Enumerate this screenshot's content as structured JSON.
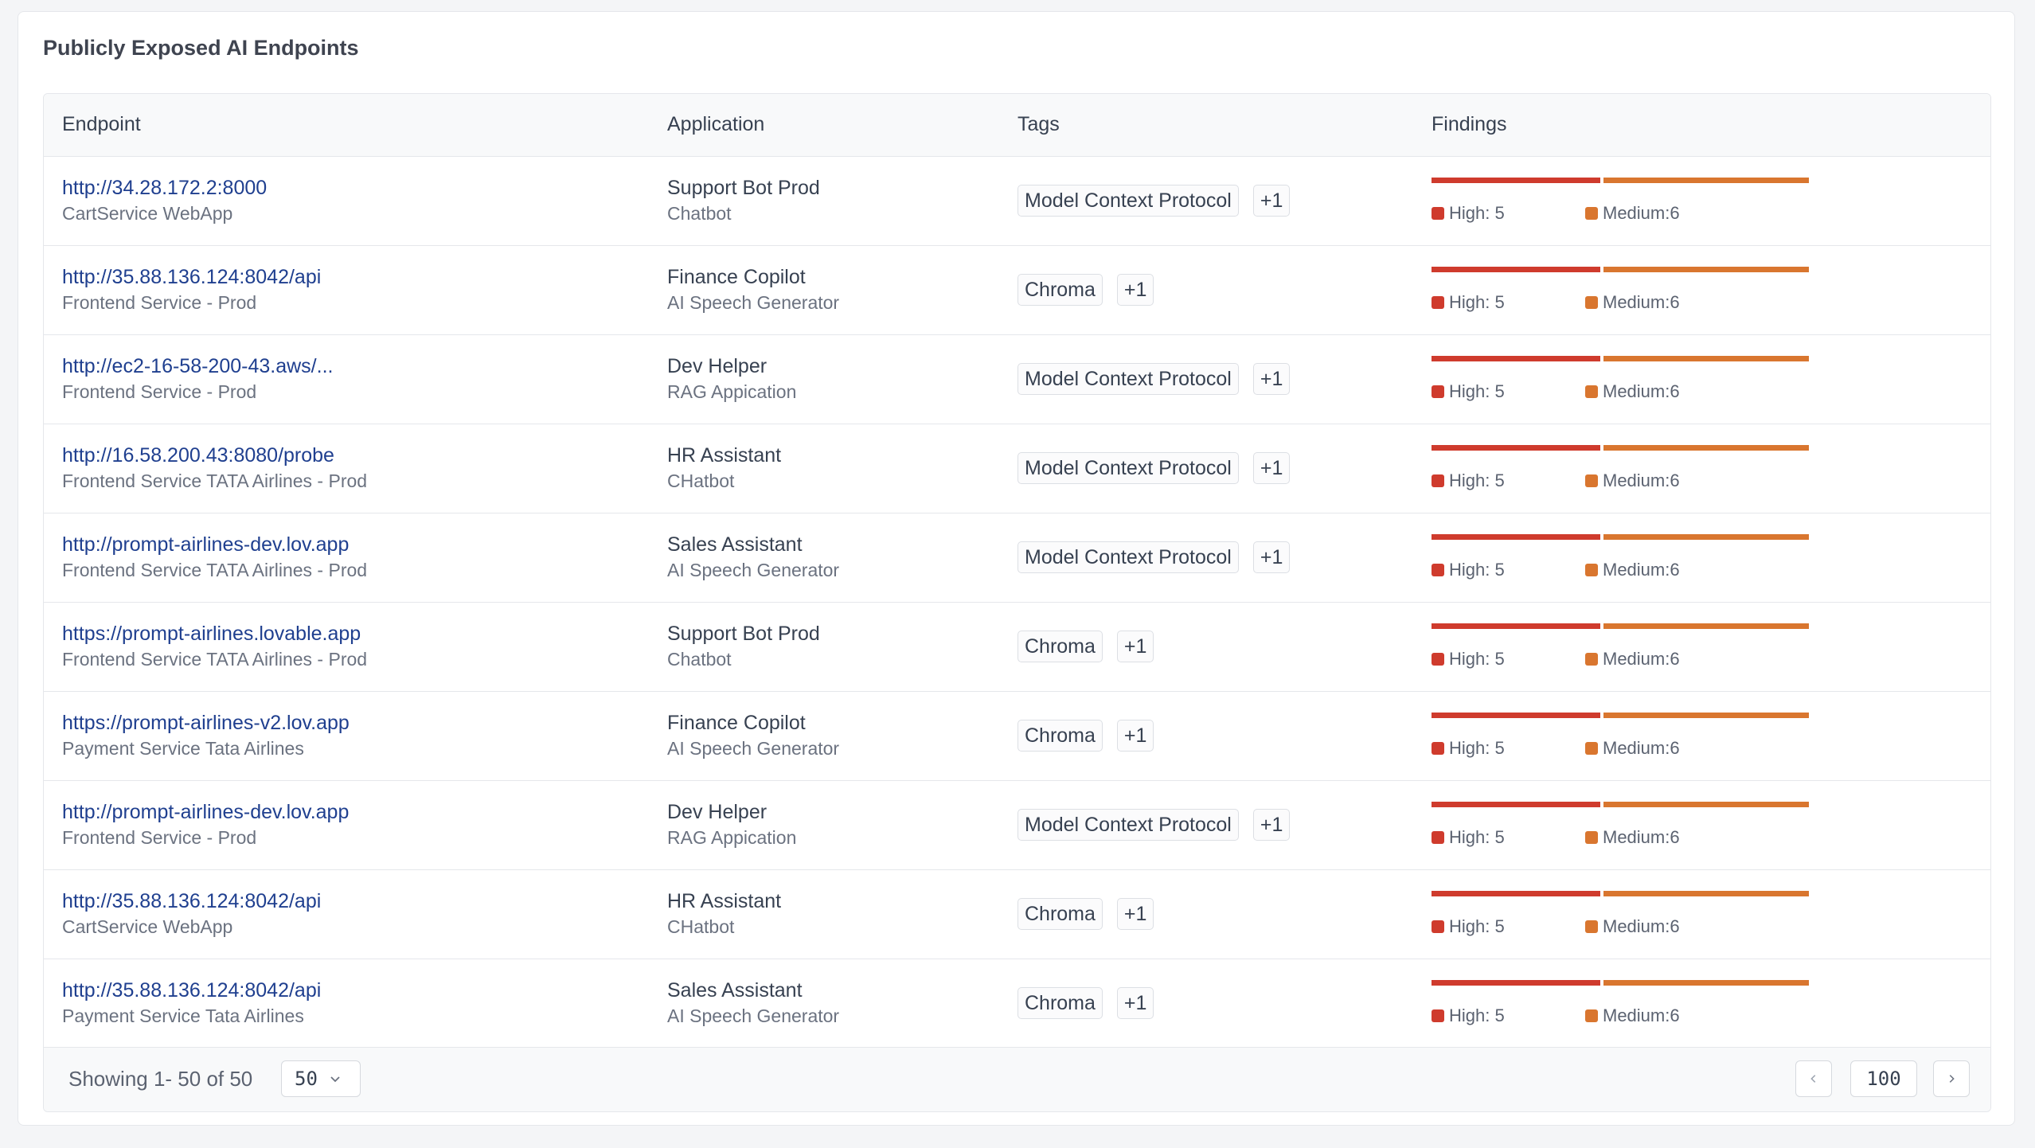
{
  "title": "Publicly Exposed AI Endpoints",
  "columns": {
    "endpoint": "Endpoint",
    "application": "Application",
    "tags": "Tags",
    "findings": "Findings"
  },
  "colors": {
    "high": "#cf3b2d",
    "medium": "#d9762f",
    "link": "#1f3f8f"
  },
  "rows": [
    {
      "endpoint": "http://34.28.172.2:8000",
      "service": "CartService WebApp",
      "app": "Support Bot Prod",
      "app_type": "Chatbot",
      "tag": "Model Context Protocol",
      "more": "+1",
      "high": "High: 5",
      "medium": "Medium:6"
    },
    {
      "endpoint": "http://35.88.136.124:8042/api",
      "service": "Frontend Service - Prod",
      "app": "Finance Copilot",
      "app_type": "AI Speech Generator",
      "tag": "Chroma",
      "more": "+1",
      "high": "High: 5",
      "medium": "Medium:6"
    },
    {
      "endpoint": "http://ec2-16-58-200-43.aws/...",
      "service": "Frontend Service - Prod",
      "app": "Dev Helper",
      "app_type": "RAG Appication",
      "tag": "Model Context Protocol",
      "more": "+1",
      "high": "High: 5",
      "medium": "Medium:6"
    },
    {
      "endpoint": "http://16.58.200.43:8080/probe",
      "service": "Frontend Service TATA Airlines - Prod",
      "app": "HR Assistant",
      "app_type": "CHatbot",
      "tag": "Model Context Protocol",
      "more": "+1",
      "high": "High: 5",
      "medium": "Medium:6"
    },
    {
      "endpoint": "http://prompt-airlines-dev.lov.app",
      "service": "Frontend Service TATA Airlines - Prod",
      "app": "Sales Assistant",
      "app_type": "AI Speech Generator",
      "tag": "Model Context Protocol",
      "more": "+1",
      "high": "High: 5",
      "medium": "Medium:6"
    },
    {
      "endpoint": "https://prompt-airlines.lovable.app",
      "service": "Frontend Service TATA Airlines - Prod",
      "app": "Support Bot Prod",
      "app_type": "Chatbot",
      "tag": "Chroma",
      "more": "+1",
      "high": "High: 5",
      "medium": "Medium:6"
    },
    {
      "endpoint": "https://prompt-airlines-v2.lov.app",
      "service": "Payment Service Tata Airlines",
      "app": "Finance Copilot",
      "app_type": "AI Speech Generator",
      "tag": "Chroma",
      "more": "+1",
      "high": "High: 5",
      "medium": "Medium:6"
    },
    {
      "endpoint": "http://prompt-airlines-dev.lov.app",
      "service": "Frontend Service - Prod",
      "app": "Dev Helper",
      "app_type": "RAG Appication",
      "tag": "Model Context Protocol",
      "more": "+1",
      "high": "High: 5",
      "medium": "Medium:6"
    },
    {
      "endpoint": "http://35.88.136.124:8042/api",
      "service": "CartService WebApp",
      "app": "HR Assistant",
      "app_type": "CHatbot",
      "tag": "Chroma",
      "more": "+1",
      "high": "High: 5",
      "medium": "Medium:6"
    },
    {
      "endpoint": "http://35.88.136.124:8042/api",
      "service": "Payment Service Tata Airlines",
      "app": "Sales Assistant",
      "app_type": "AI Speech Generator",
      "tag": "Chroma",
      "more": "+1",
      "high": "High: 5",
      "medium": "Medium:6"
    }
  ],
  "footer": {
    "showing": "Showing 1- 50 of 50",
    "page_size": "50",
    "page_number": "100"
  },
  "icons": {
    "dropdown": "chevron-down-icon",
    "prev": "chevron-left-icon",
    "next": "chevron-right-icon"
  }
}
